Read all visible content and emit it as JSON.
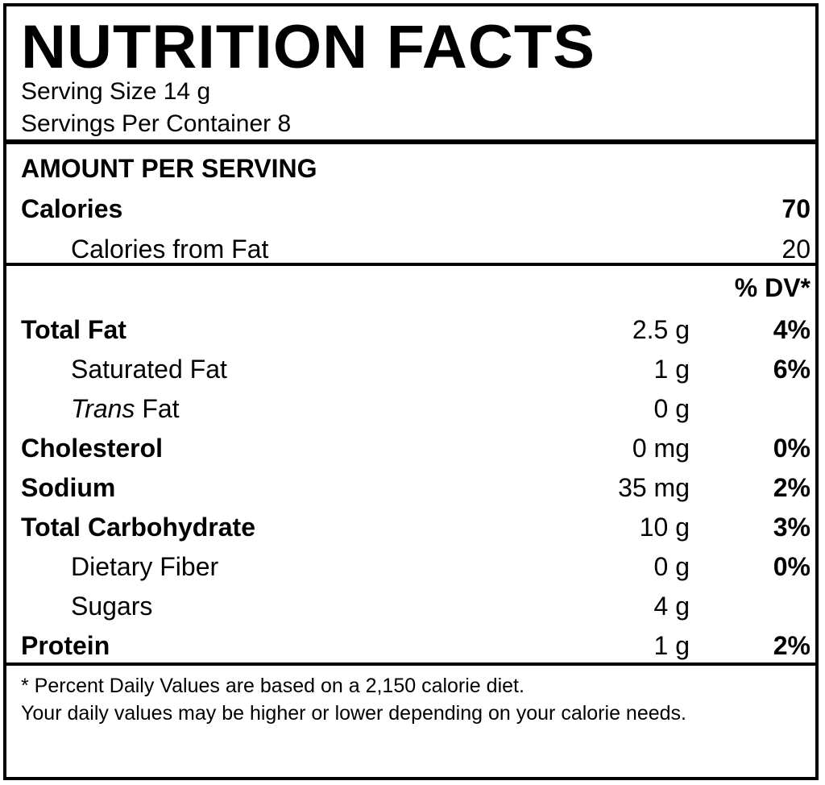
{
  "title": "NUTRITION FACTS",
  "serving_size": "Serving Size 14 g",
  "servings_per_container": "Servings Per Container 8",
  "amount_header": "AMOUNT PER SERVING",
  "calories": {
    "label": "Calories",
    "value": "70"
  },
  "calories_from_fat": {
    "label": "Calories from Fat",
    "value": "20"
  },
  "dv_header": "% DV*",
  "nutrients": [
    {
      "label": "Total Fat",
      "amount": "2.5 g",
      "dv": "4%"
    },
    {
      "label": "Saturated Fat",
      "amount": "1 g",
      "dv": "6%"
    },
    {
      "label_italic": "Trans",
      "label_rest": " Fat",
      "amount": "0 g",
      "dv": ""
    },
    {
      "label": "Cholesterol",
      "amount": "0 mg",
      "dv": "0%"
    },
    {
      "label": "Sodium",
      "amount": "35 mg",
      "dv": "2%"
    },
    {
      "label": "Total Carbohydrate",
      "amount": "10 g",
      "dv": "3%"
    },
    {
      "label": "Dietary Fiber",
      "amount": "0 g",
      "dv": "0%"
    },
    {
      "label": "Sugars",
      "amount": "4 g",
      "dv": ""
    },
    {
      "label": "Protein",
      "amount": "1 g",
      "dv": "2%"
    }
  ],
  "footnote": {
    "line1": "* Percent Daily Values are based on a 2,150 calorie diet.",
    "line2": "Your daily values may be higher or lower depending on your calorie needs."
  }
}
